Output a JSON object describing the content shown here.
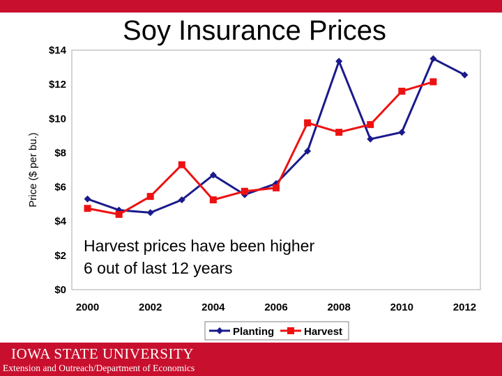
{
  "slide": {
    "title": "Soy Insurance Prices",
    "university": "IOWA STATE UNIVERSITY",
    "department": "Extension and Outreach/Department of Economics",
    "accent_color": "#c8102e"
  },
  "chart_data": {
    "type": "line",
    "title": "",
    "xlabel": "",
    "ylabel": "Price ($ per bu.)",
    "xlim": [
      1999.5,
      2012.5
    ],
    "ylim": [
      0,
      14
    ],
    "x_ticks": [
      2000,
      2002,
      2004,
      2006,
      2008,
      2010,
      2012
    ],
    "x_tick_labels": [
      "2000",
      "2002",
      "2004",
      "2006",
      "2008",
      "2010",
      "2012"
    ],
    "y_ticks": [
      0,
      2,
      4,
      6,
      8,
      10,
      12,
      14
    ],
    "y_tick_labels": [
      "$0",
      "$2",
      "$4",
      "$6",
      "$8",
      "$10",
      "$12",
      "$14"
    ],
    "grid": false,
    "legend_position": "bottom",
    "annotation": [
      "Harvest prices have been higher",
      "6 out of last 12 years"
    ],
    "series": [
      {
        "name": "Planting",
        "color": "#1a1a8c",
        "marker": "diamond",
        "x": [
          2000,
          2001,
          2002,
          2003,
          2004,
          2005,
          2006,
          2007,
          2008,
          2009,
          2010,
          2011,
          2012
        ],
        "values": [
          5.3,
          4.65,
          4.5,
          5.25,
          6.7,
          5.55,
          6.2,
          8.1,
          13.35,
          8.8,
          9.2,
          13.5,
          12.55
        ]
      },
      {
        "name": "Harvest",
        "color": "#ee1111",
        "marker": "square",
        "x": [
          2000,
          2001,
          2002,
          2003,
          2004,
          2005,
          2006,
          2007,
          2008,
          2009,
          2010,
          2011
        ],
        "values": [
          4.75,
          4.4,
          5.45,
          7.3,
          5.25,
          5.75,
          5.95,
          9.75,
          9.2,
          9.65,
          11.6,
          12.15
        ]
      }
    ]
  }
}
